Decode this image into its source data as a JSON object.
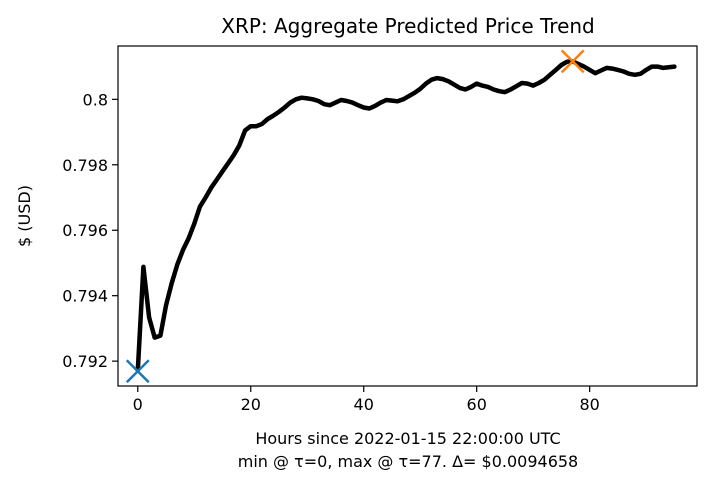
{
  "chart_data": {
    "type": "line",
    "title": "XRP: Aggregate Predicted Price Trend",
    "xlabel": "Hours since 2022-01-15 22:00:00 UTC",
    "xlabel2": "min @ τ=0, max @ τ=77. Δ= $0.0094658",
    "ylabel": "$ (USD)",
    "xlim": [
      -3.5,
      99
    ],
    "ylim": [
      0.79124,
      0.80163
    ],
    "xticks": [
      0,
      20,
      40,
      60,
      80
    ],
    "xtick_labels": [
      "0",
      "20",
      "40",
      "60",
      "80"
    ],
    "yticks": [
      0.792,
      0.794,
      0.796,
      0.798,
      0.8
    ],
    "ytick_labels": [
      "0.792",
      "0.794",
      "0.796",
      "0.798",
      "0.8"
    ],
    "grid": false,
    "line_color": "#000000",
    "series": [
      {
        "x": [
          0,
          1,
          2,
          3,
          4,
          5,
          6,
          7,
          8,
          9,
          10,
          11,
          12,
          13,
          14,
          15,
          16,
          17,
          18,
          19,
          20,
          21,
          22,
          23,
          24,
          25,
          26,
          27,
          28,
          29,
          30,
          31,
          32,
          33,
          34,
          35,
          36,
          37,
          38,
          39,
          40,
          41,
          42,
          43,
          44,
          45,
          46,
          47,
          48,
          49,
          50,
          51,
          52,
          53,
          54,
          55,
          56,
          57,
          58,
          59,
          60,
          61,
          62,
          63,
          64,
          65,
          66,
          67,
          68,
          69,
          70,
          71,
          72,
          73,
          74,
          75,
          76,
          77,
          78,
          79,
          80,
          81,
          82,
          83,
          84,
          85,
          86,
          87,
          88,
          89,
          90,
          91,
          92,
          93,
          94,
          95
        ],
        "y": [
          0.79172,
          0.79488,
          0.79334,
          0.79272,
          0.79278,
          0.7937,
          0.79438,
          0.79495,
          0.7954,
          0.79575,
          0.7962,
          0.79672,
          0.797,
          0.7973,
          0.79755,
          0.7978,
          0.79805,
          0.7983,
          0.7986,
          0.79905,
          0.79918,
          0.79918,
          0.79925,
          0.7994,
          0.7995,
          0.79962,
          0.79975,
          0.7999,
          0.8,
          0.80005,
          0.80003,
          0.8,
          0.79995,
          0.79985,
          0.79982,
          0.7999,
          0.79998,
          0.79995,
          0.7999,
          0.79982,
          0.79975,
          0.79972,
          0.7998,
          0.7999,
          0.79998,
          0.79996,
          0.79994,
          0.8,
          0.8001,
          0.8002,
          0.80032,
          0.80048,
          0.8006,
          0.80065,
          0.80062,
          0.80055,
          0.80045,
          0.80035,
          0.8003,
          0.80038,
          0.80048,
          0.80042,
          0.80038,
          0.8003,
          0.80025,
          0.80022,
          0.8003,
          0.8004,
          0.8005,
          0.80048,
          0.80042,
          0.8005,
          0.8006,
          0.80075,
          0.8009,
          0.80105,
          0.80115,
          0.80116,
          0.80108,
          0.801,
          0.8009,
          0.8008,
          0.80088,
          0.80096,
          0.80094,
          0.8009,
          0.80085,
          0.80078,
          0.80075,
          0.80078,
          0.8009,
          0.801,
          0.801,
          0.80096,
          0.80098,
          0.801
        ]
      }
    ],
    "markers": [
      {
        "name": "min",
        "x": 0,
        "y": 0.79169,
        "symbol": "x",
        "color": "#1f77b4"
      },
      {
        "name": "max",
        "x": 77,
        "y": 0.80116,
        "symbol": "x",
        "color": "#ff7f0e"
      }
    ]
  }
}
